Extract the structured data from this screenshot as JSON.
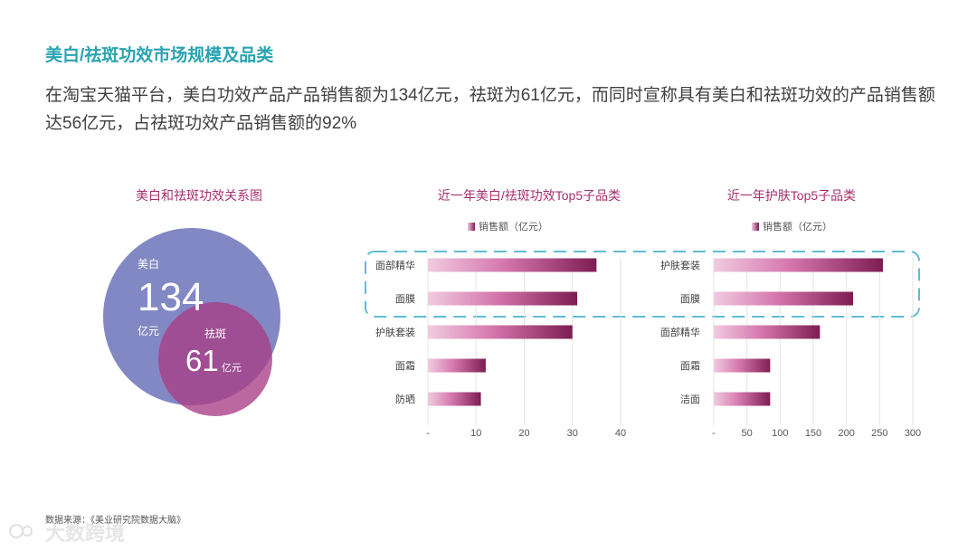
{
  "title": "美白/祛斑功效市场规模及品类",
  "subtitle": "在淘宝天猫平台，美白功效产品产品销售额为134亿元，祛斑为61亿元，而同时宣称具有美白和祛斑功效的产品销售额达56亿元，占祛斑功效产品销售额的92%",
  "venn": {
    "title": "美白和祛斑功效关系图",
    "big": {
      "label": "美白",
      "value": "134",
      "unit": "亿元",
      "color": "#8288c4"
    },
    "small": {
      "label": "祛斑",
      "value": "61",
      "unit": "亿元",
      "color": "#a83d85"
    }
  },
  "chart_data": [
    {
      "type": "bar",
      "orientation": "horizontal",
      "title": "近一年美白/祛斑功效Top5子品类",
      "legend": "销售额（亿元）",
      "categories": [
        "面部精华",
        "面膜",
        "护肤套装",
        "面霜",
        "防晒"
      ],
      "values": [
        35,
        31,
        30,
        12,
        11
      ],
      "xlim": [
        0,
        40
      ],
      "xticks": [
        0,
        10,
        20,
        30,
        40
      ],
      "xtick_labels": [
        "-",
        "10",
        "20",
        "30",
        "40"
      ],
      "gradient": [
        "#f0cbe0",
        "#7d1d52"
      ]
    },
    {
      "type": "bar",
      "orientation": "horizontal",
      "title": "近一年护肤Top5子品类",
      "legend": "销售额（亿元）",
      "categories": [
        "护肤套装",
        "面膜",
        "面部精华",
        "面霜",
        "洁面"
      ],
      "values": [
        255,
        210,
        160,
        85,
        85
      ],
      "xlim": [
        0,
        300
      ],
      "xticks": [
        0,
        50,
        100,
        150,
        200,
        250,
        300
      ],
      "xtick_labels": [
        "-",
        "50",
        "100",
        "150",
        "200",
        "250",
        "300"
      ],
      "gradient": [
        "#f0cbe0",
        "#7d1d52"
      ]
    }
  ],
  "source": "数据来源：《美业研究院数据大脑》",
  "watermark": "大数跨境"
}
